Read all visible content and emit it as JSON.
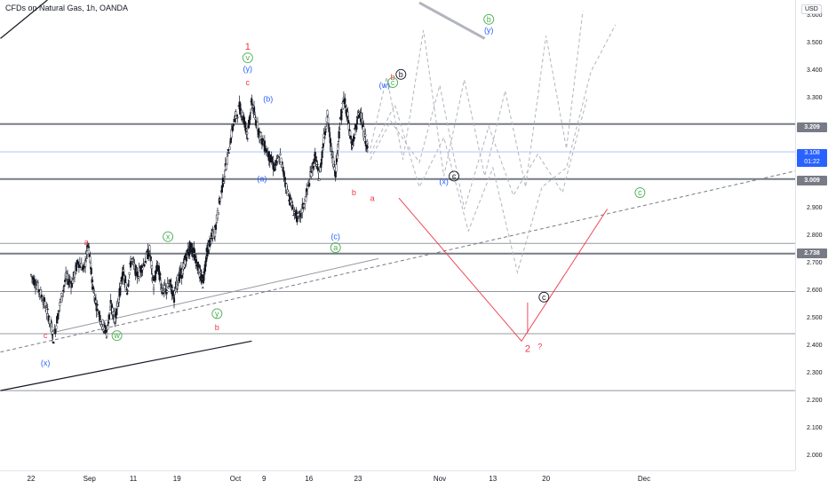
{
  "header": {
    "title": "CFDs on Natural Gas, 1h, OANDA",
    "currency": "USD"
  },
  "colors": {
    "up": "#131722",
    "down": "#131722",
    "green": "#4caf50",
    "blue": "#2962ff",
    "red": "#f23645",
    "gray": "#9e9e9e",
    "level": "#787b86",
    "current": "#2962ff"
  },
  "chart_data": {
    "type": "candlestick",
    "symbol": "NATGAS",
    "timeframe": "1h",
    "ylim": [
      1.95,
      3.66
    ],
    "y_ticks": [
      "3.600",
      "3.500",
      "3.400",
      "3.300",
      "3.200",
      "3.100",
      "3.000",
      "2.900",
      "2.800",
      "2.700",
      "2.600",
      "2.500",
      "2.400",
      "2.300",
      "2.200",
      "2.100",
      "2.000"
    ],
    "x_ticks": [
      "22",
      "Sep",
      "11",
      "19",
      "Oct",
      "9",
      "16",
      "23",
      "Nov",
      "13",
      "20",
      "Dec"
    ],
    "x_tick_positions": [
      0.0,
      0.286,
      0.5,
      0.714,
      1.0,
      1.14,
      1.36,
      1.6,
      2.0,
      2.26,
      2.52,
      3.0
    ],
    "price_path": [
      [
        0.0,
        2.66
      ],
      [
        0.03,
        2.62
      ],
      [
        0.06,
        2.57
      ],
      [
        0.09,
        2.5
      ],
      [
        0.11,
        2.43
      ],
      [
        0.14,
        2.55
      ],
      [
        0.17,
        2.65
      ],
      [
        0.2,
        2.63
      ],
      [
        0.23,
        2.71
      ],
      [
        0.26,
        2.68
      ],
      [
        0.28,
        2.77
      ],
      [
        0.3,
        2.63
      ],
      [
        0.32,
        2.55
      ],
      [
        0.35,
        2.48
      ],
      [
        0.37,
        2.45
      ],
      [
        0.39,
        2.55
      ],
      [
        0.41,
        2.5
      ],
      [
        0.43,
        2.58
      ],
      [
        0.45,
        2.67
      ],
      [
        0.47,
        2.6
      ],
      [
        0.49,
        2.72
      ],
      [
        0.52,
        2.66
      ],
      [
        0.55,
        2.7
      ],
      [
        0.58,
        2.75
      ],
      [
        0.6,
        2.62
      ],
      [
        0.62,
        2.7
      ],
      [
        0.64,
        2.61
      ],
      [
        0.66,
        2.6
      ],
      [
        0.68,
        2.63
      ],
      [
        0.7,
        2.58
      ],
      [
        0.72,
        2.65
      ],
      [
        0.74,
        2.67
      ],
      [
        0.76,
        2.73
      ],
      [
        0.78,
        2.76
      ],
      [
        0.8,
        2.74
      ],
      [
        0.82,
        2.68
      ],
      [
        0.84,
        2.63
      ],
      [
        0.86,
        2.74
      ],
      [
        0.88,
        2.79
      ],
      [
        0.9,
        2.82
      ],
      [
        0.93,
        2.96
      ],
      [
        0.96,
        3.08
      ],
      [
        0.99,
        3.21
      ],
      [
        1.02,
        3.27
      ],
      [
        1.04,
        3.23
      ],
      [
        1.06,
        3.17
      ],
      [
        1.08,
        3.29
      ],
      [
        1.1,
        3.22
      ],
      [
        1.13,
        3.15
      ],
      [
        1.16,
        3.1
      ],
      [
        1.19,
        3.05
      ],
      [
        1.22,
        3.09
      ],
      [
        1.25,
        2.98
      ],
      [
        1.28,
        2.9
      ],
      [
        1.31,
        2.86
      ],
      [
        1.34,
        2.93
      ],
      [
        1.37,
        3.03
      ],
      [
        1.39,
        3.09
      ],
      [
        1.41,
        3.01
      ],
      [
        1.43,
        3.14
      ],
      [
        1.45,
        3.24
      ],
      [
        1.47,
        3.11
      ],
      [
        1.49,
        3.03
      ],
      [
        1.51,
        3.2
      ],
      [
        1.53,
        3.3
      ],
      [
        1.55,
        3.24
      ],
      [
        1.57,
        3.12
      ],
      [
        1.59,
        3.2
      ],
      [
        1.61,
        3.26
      ],
      [
        1.63,
        3.17
      ],
      [
        1.65,
        3.11
      ]
    ],
    "levels": [
      3.209,
      3.009,
      2.775,
      2.738,
      2.6,
      2.447,
      2.24
    ],
    "highlighted_levels": [
      "3.209",
      "3.009",
      "2.738"
    ],
    "current_price": "3.108",
    "countdown": "01:22",
    "projection_red": {
      "start": [
        1.8,
        2.94
      ],
      "bottom": [
        2.4,
        2.42
      ],
      "end": [
        2.82,
        2.9
      ]
    },
    "wave_labels": [
      {
        "text": "1",
        "color": "red"
      },
      {
        "text": "v",
        "color": "green",
        "circled": true
      },
      {
        "text": "(y)",
        "color": "blue"
      },
      {
        "text": "c",
        "color": "red"
      },
      {
        "text": "(b)",
        "color": "blue"
      },
      {
        "text": "(a)",
        "color": "blue"
      },
      {
        "text": "(c)",
        "color": "blue"
      },
      {
        "text": "a",
        "color": "green",
        "circled": true
      },
      {
        "text": "(w)",
        "color": "blue"
      },
      {
        "text": "b",
        "color": "red"
      },
      {
        "text": "b",
        "color": "black",
        "circled": true
      },
      {
        "text": "c",
        "color": "green",
        "circled": true
      },
      {
        "text": "(x)",
        "color": "blue"
      },
      {
        "text": "c",
        "color": "black",
        "circled": true
      },
      {
        "text": "b",
        "color": "green",
        "circled": true
      },
      {
        "text": "(y)",
        "color": "blue"
      },
      {
        "text": "c",
        "color": "black",
        "circled": true
      },
      {
        "text": "2",
        "color": "red"
      },
      {
        "text": "?",
        "color": "red"
      },
      {
        "text": "c",
        "color": "green",
        "circled": true
      },
      {
        "text": "a",
        "color": "red"
      },
      {
        "text": "x",
        "color": "green",
        "circled": true
      },
      {
        "text": "y",
        "color": "green",
        "circled": true
      },
      {
        "text": "b",
        "color": "red"
      },
      {
        "text": "w",
        "color": "green",
        "circled": true
      },
      {
        "text": "c",
        "color": "red"
      },
      {
        "text": "(x)",
        "color": "blue"
      },
      {
        "text": "a",
        "color": "red"
      },
      {
        "text": "b",
        "color": "red"
      }
    ]
  }
}
